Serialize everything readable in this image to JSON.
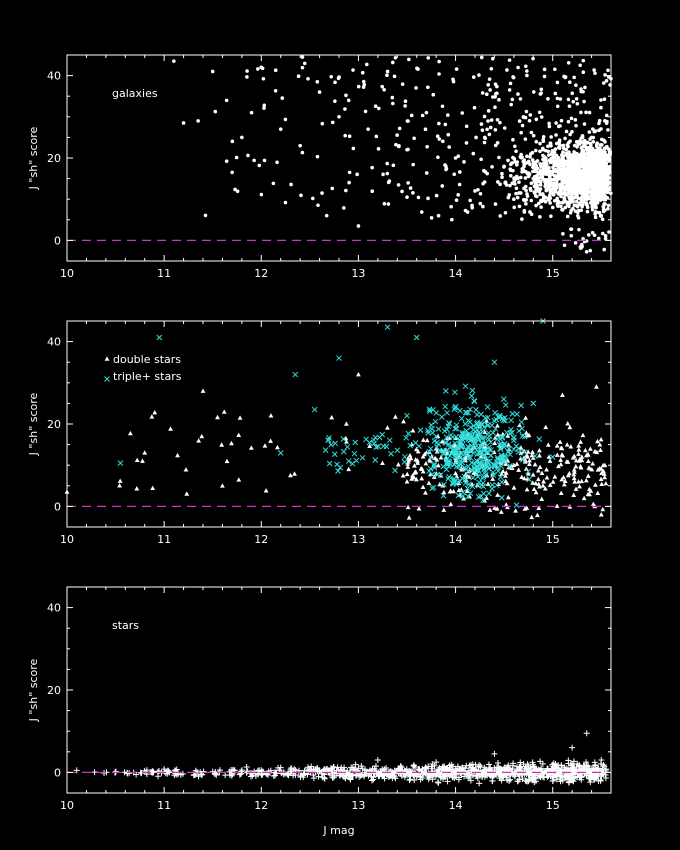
{
  "colors": {
    "background": "#000000",
    "axes": "#ffffff",
    "points_primary": "#ffffff",
    "points_secondary": "#33dddd",
    "zero_line": "#cc33cc"
  },
  "chart_data": [
    {
      "type": "scatter",
      "title": "",
      "annotation": "galaxies",
      "xlabel": "",
      "ylabel": "J \"sh\" score",
      "xlim": [
        10,
        15.6
      ],
      "ylim": [
        -5,
        45
      ],
      "xticks": [
        "10",
        "11",
        "12",
        "13",
        "14",
        "15"
      ],
      "yticks": [
        "0",
        "20",
        "40"
      ],
      "zero_line": 0,
      "grid": false,
      "series": [
        {
          "marker": "dot",
          "sample_points": [
            [
              11.1,
              43.5
            ],
            [
              11.2,
              28.5
            ],
            [
              11.35,
              29.0
            ],
            [
              11.5,
              41.0
            ],
            [
              11.7,
              16.5
            ],
            [
              11.8,
              25.0
            ],
            [
              11.9,
              31.0
            ],
            [
              12.0,
              42.0
            ],
            [
              12.2,
              27.0
            ],
            [
              12.4,
              23.0
            ],
            [
              12.6,
              36.0
            ],
            [
              12.8,
              30.0
            ],
            [
              12.9,
              34.0
            ],
            [
              13.0,
              3.5
            ],
            [
              13.1,
              27.0
            ],
            [
              13.3,
              41.0
            ],
            [
              13.5,
              22.0
            ],
            [
              13.7,
              31.0
            ],
            [
              13.9,
              18.0
            ],
            [
              14.0,
              20.0
            ],
            [
              14.2,
              12.0
            ],
            [
              14.3,
              25.0
            ],
            [
              14.5,
              18.0
            ],
            [
              14.6,
              10.0
            ],
            [
              14.7,
              30.0
            ],
            [
              14.8,
              15.0
            ],
            [
              14.9,
              22.0
            ],
            [
              15.0,
              8.0
            ],
            [
              15.1,
              18.0
            ],
            [
              15.2,
              12.0
            ],
            [
              15.3,
              -1.0
            ],
            [
              15.4,
              25.0
            ],
            [
              15.5,
              6.0
            ],
            [
              15.55,
              14.0
            ]
          ]
        }
      ]
    },
    {
      "type": "scatter",
      "title": "",
      "xlabel": "",
      "ylabel": "J \"sh\" score",
      "xlim": [
        10,
        15.6
      ],
      "ylim": [
        -5,
        45
      ],
      "xticks": [
        "10",
        "11",
        "12",
        "13",
        "14",
        "15"
      ],
      "yticks": [
        "0",
        "20",
        "40"
      ],
      "zero_line": 0,
      "grid": false,
      "legend": "top-left",
      "series": [
        {
          "name": "double stars",
          "marker": "triangle",
          "sample_points": [
            [
              10.0,
              3.5
            ],
            [
              10.8,
              13.0
            ],
            [
              11.4,
              28.0
            ],
            [
              11.6,
              5.0
            ],
            [
              12.1,
              22.0
            ],
            [
              12.3,
              7.5
            ],
            [
              12.9,
              9.0
            ],
            [
              13.0,
              32.0
            ],
            [
              13.5,
              6.0
            ],
            [
              13.8,
              14.0
            ],
            [
              14.0,
              8.0
            ],
            [
              14.3,
              18.0
            ],
            [
              14.6,
              10.0
            ],
            [
              14.9,
              5.0
            ],
            [
              15.1,
              27.0
            ],
            [
              15.3,
              12.0
            ],
            [
              15.45,
              29.0
            ],
            [
              15.5,
              -2.0
            ]
          ]
        },
        {
          "name": "triple+ stars",
          "marker": "x",
          "sample_points": [
            [
              10.55,
              10.5
            ],
            [
              10.95,
              41.0
            ],
            [
              12.2,
              13.0
            ],
            [
              12.35,
              32.0
            ],
            [
              12.55,
              23.5
            ],
            [
              12.8,
              36.0
            ],
            [
              12.9,
              11.0
            ],
            [
              13.3,
              43.5
            ],
            [
              13.5,
              22.0
            ],
            [
              13.6,
              41.0
            ],
            [
              13.8,
              17.0
            ],
            [
              13.9,
              28.0
            ],
            [
              14.0,
              12.0
            ],
            [
              14.1,
              20.0
            ],
            [
              14.3,
              9.0
            ],
            [
              14.4,
              35.0
            ],
            [
              14.6,
              16.0
            ],
            [
              14.8,
              25.0
            ],
            [
              14.9,
              45.0
            ],
            [
              15.0,
              12.0
            ]
          ]
        }
      ]
    },
    {
      "type": "scatter",
      "title": "",
      "annotation": "stars",
      "xlabel": "J mag",
      "ylabel": "J \"sh\" score",
      "xlim": [
        10,
        15.6
      ],
      "ylim": [
        -5,
        45
      ],
      "xticks": [
        "10",
        "11",
        "12",
        "13",
        "14",
        "15"
      ],
      "yticks": [
        "0",
        "20",
        "40"
      ],
      "zero_line": 0,
      "grid": false,
      "series": [
        {
          "marker": "plus",
          "sample_points": [
            [
              10.1,
              0.5
            ],
            [
              10.5,
              0.0
            ],
            [
              11.0,
              0.8
            ],
            [
              11.5,
              0.2
            ],
            [
              12.0,
              -0.3
            ],
            [
              12.5,
              0.5
            ],
            [
              13.0,
              1.0
            ],
            [
              13.2,
              3.0
            ],
            [
              13.5,
              0.0
            ],
            [
              13.8,
              2.5
            ],
            [
              14.1,
              1.0
            ],
            [
              14.4,
              4.5
            ],
            [
              14.7,
              2.0
            ],
            [
              15.0,
              1.5
            ],
            [
              15.2,
              6.0
            ],
            [
              15.35,
              9.5
            ],
            [
              15.5,
              3.0
            ]
          ]
        }
      ]
    }
  ]
}
